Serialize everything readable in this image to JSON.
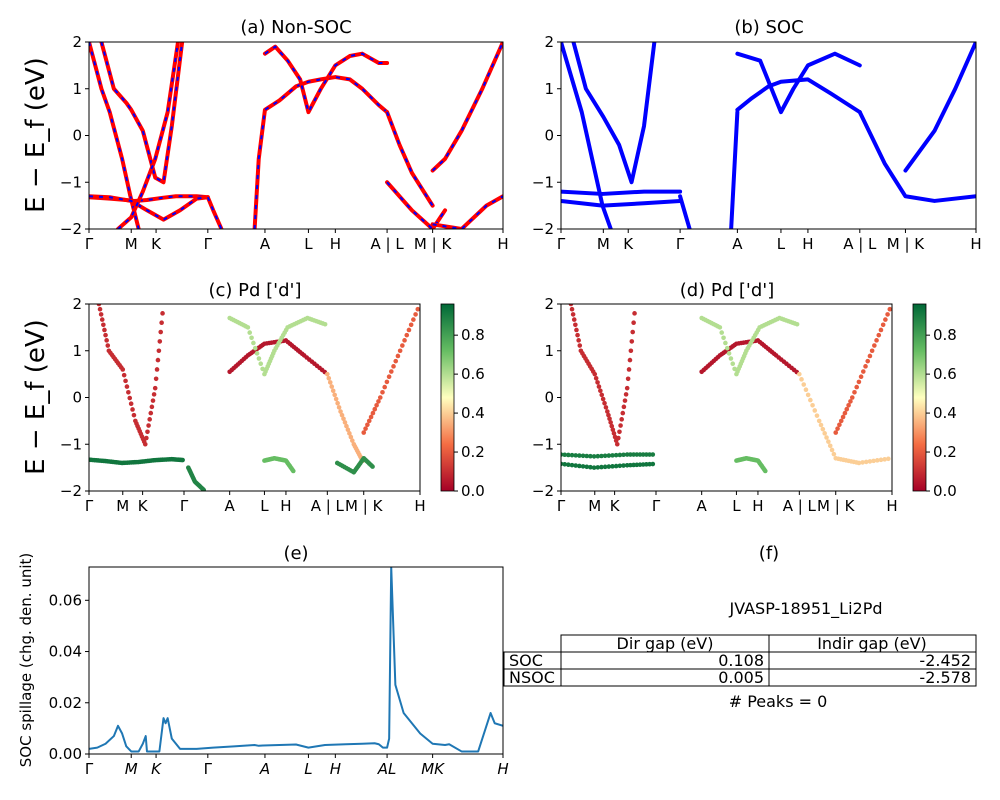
{
  "figure": {
    "background": "#ffffff"
  },
  "chart_data": [
    {
      "id": "a",
      "type": "line",
      "title": "(a) Non-SOC",
      "ylabel": "E − E_f (eV)",
      "ylim": [
        -2,
        2
      ],
      "yticks": [
        "−2",
        "−1",
        "0",
        "1",
        "2"
      ],
      "xticks": [
        "Γ",
        "M",
        "K",
        "Γ",
        "A",
        "L",
        "H",
        "A | L",
        "M | K",
        "H"
      ],
      "xtick_pos": [
        0,
        0.102,
        0.162,
        0.287,
        0.425,
        0.53,
        0.595,
        0.72,
        0.83,
        1.0
      ],
      "style": {
        "color": "#ff0000",
        "dash_color": "#0000ff"
      },
      "series": [
        {
          "x": [
            0.0,
            0.03,
            0.05,
            0.08,
            0.1,
            0.12
          ],
          "y": [
            2.0,
            1.0,
            0.5,
            -0.5,
            -1.3,
            -2.0
          ]
        },
        {
          "x": [
            0.03,
            0.06,
            0.09,
            0.102,
            0.13,
            0.16,
            0.18,
            0.2,
            0.225
          ],
          "y": [
            2.0,
            1.0,
            0.7,
            0.55,
            0.1,
            -0.9,
            -1.0,
            0.2,
            2.0
          ]
        },
        {
          "x": [
            0.0,
            0.05,
            0.09,
            0.11,
            0.14,
            0.18,
            0.21,
            0.26,
            0.287
          ],
          "y": [
            -1.32,
            -1.35,
            -1.38,
            -1.4,
            -1.38,
            -1.33,
            -1.3,
            -1.3,
            -1.32
          ]
        },
        {
          "x": [
            0.0,
            0.05,
            0.102,
            0.14,
            0.18,
            0.22,
            0.26,
            0.287
          ],
          "y": [
            -1.3,
            -1.32,
            -1.4,
            -1.6,
            -1.8,
            -1.6,
            -1.35,
            -1.32
          ]
        },
        {
          "x": [
            0.07,
            0.102,
            0.13,
            0.16,
            0.19,
            0.215
          ],
          "y": [
            -2.0,
            -1.75,
            -1.2,
            -0.5,
            0.5,
            2.0
          ]
        },
        {
          "x": [
            0.287,
            0.3,
            0.32
          ],
          "y": [
            -1.32,
            -1.6,
            -2.0
          ]
        },
        {
          "x": [
            0.4,
            0.41,
            0.425,
            0.46,
            0.5,
            0.53,
            0.56,
            0.595,
            0.63,
            0.66,
            0.7,
            0.72
          ],
          "y": [
            -2.0,
            -0.5,
            0.55,
            0.75,
            1.05,
            1.15,
            1.2,
            1.25,
            1.2,
            1.0,
            0.65,
            0.5
          ]
        },
        {
          "x": [
            0.425,
            0.45,
            0.48,
            0.51,
            0.53,
            0.56,
            0.595,
            0.63,
            0.66,
            0.7,
            0.72
          ],
          "y": [
            1.75,
            1.9,
            1.6,
            1.2,
            0.5,
            1.0,
            1.5,
            1.7,
            1.75,
            1.55,
            1.55
          ]
        },
        {
          "x": [
            0.72,
            0.75,
            0.78,
            0.83
          ],
          "y": [
            0.5,
            -0.2,
            -0.8,
            -1.5
          ]
        },
        {
          "x": [
            0.72,
            0.78,
            0.83,
            0.86
          ],
          "y": [
            -1.0,
            -1.6,
            -2.0,
            -1.6
          ]
        },
        {
          "x": [
            0.83,
            0.86,
            0.9,
            0.95,
            1.0
          ],
          "y": [
            -0.75,
            -0.5,
            0.1,
            1.0,
            2.0
          ]
        },
        {
          "x": [
            0.83,
            0.9,
            0.96,
            1.0
          ],
          "y": [
            -1.9,
            -2.0,
            -1.5,
            -1.3
          ]
        }
      ]
    },
    {
      "id": "b",
      "type": "line",
      "title": "(b) SOC",
      "ylim": [
        -2,
        2
      ],
      "yticks": [
        "−2",
        "−1",
        "0",
        "1",
        "2"
      ],
      "xticks": [
        "Γ",
        "M",
        "K",
        "Γ",
        "A",
        "L",
        "H",
        "A | L",
        "M | K",
        "H"
      ],
      "xtick_pos": [
        0,
        0.102,
        0.162,
        0.287,
        0.425,
        0.53,
        0.595,
        0.72,
        0.83,
        1.0
      ],
      "style": {
        "color": "#0000ff"
      },
      "series": [
        {
          "x": [
            0.0,
            0.1,
            0.2,
            0.287
          ],
          "y": [
            -1.2,
            -1.25,
            -1.2,
            -1.2
          ]
        },
        {
          "x": [
            0.0,
            0.1,
            0.2,
            0.287
          ],
          "y": [
            -1.4,
            -1.5,
            -1.45,
            -1.4
          ]
        },
        {
          "x": [
            0.03,
            0.06,
            0.102,
            0.14,
            0.17,
            0.2,
            0.225
          ],
          "y": [
            2.0,
            1.0,
            0.4,
            -0.2,
            -1.0,
            0.2,
            2.0
          ]
        },
        {
          "x": [
            0.0,
            0.05,
            0.1,
            0.12
          ],
          "y": [
            2.0,
            0.5,
            -1.5,
            -2.0
          ]
        },
        {
          "x": [
            0.425,
            0.46,
            0.5,
            0.53,
            0.595,
            0.65,
            0.72
          ],
          "y": [
            0.55,
            0.8,
            1.05,
            1.15,
            1.2,
            0.9,
            0.5
          ]
        },
        {
          "x": [
            0.425,
            0.48,
            0.53,
            0.56,
            0.595,
            0.66,
            0.72
          ],
          "y": [
            1.75,
            1.6,
            0.5,
            1.0,
            1.5,
            1.75,
            1.5
          ]
        },
        {
          "x": [
            0.72,
            0.78,
            0.83,
            0.9,
            1.0
          ],
          "y": [
            0.5,
            -0.6,
            -1.3,
            -1.4,
            -1.3
          ]
        },
        {
          "x": [
            0.83,
            0.9,
            0.95,
            1.0
          ],
          "y": [
            -0.75,
            0.1,
            1.0,
            2.0
          ]
        },
        {
          "x": [
            0.287,
            0.31
          ],
          "y": [
            -1.3,
            -2.0
          ]
        },
        {
          "x": [
            0.41,
            0.425
          ],
          "y": [
            -2.0,
            0.5
          ]
        }
      ]
    },
    {
      "id": "c",
      "type": "scatter",
      "title": "(c)  Pd ['d']",
      "ylabel": "E − E_f (eV)",
      "ylim": [
        -2,
        2
      ],
      "yticks": [
        "−2",
        "−1",
        "0",
        "1",
        "2"
      ],
      "xticks": [
        "Γ",
        "M",
        "K",
        "Γ",
        "A",
        "L",
        "H",
        "A | L",
        "M | K",
        "H"
      ],
      "xtick_pos": [
        0,
        0.102,
        0.162,
        0.287,
        0.425,
        0.53,
        0.595,
        0.72,
        0.83,
        1.0
      ],
      "colorbar": {
        "ticks": [
          "0.0",
          "0.2",
          "0.4",
          "0.6",
          "0.8"
        ],
        "min": 0.0,
        "max": 0.96
      },
      "series": [
        {
          "x": [
            0.0,
            0.05,
            0.1,
            0.15,
            0.2,
            0.25,
            0.287
          ],
          "y": [
            -1.33,
            -1.36,
            -1.4,
            -1.38,
            -1.34,
            -1.32,
            -1.34
          ],
          "weight": 0.92
        },
        {
          "x": [
            0.03,
            0.06,
            0.102,
            0.14,
            0.17,
            0.2,
            0.225
          ],
          "y": [
            2.0,
            1.0,
            0.6,
            -0.5,
            -1.0,
            0.2,
            2.0
          ],
          "weight": 0.1
        },
        {
          "x": [
            0.425,
            0.48,
            0.53,
            0.595,
            0.65,
            0.72
          ],
          "y": [
            0.55,
            0.9,
            1.15,
            1.22,
            0.9,
            0.5
          ],
          "weight": 0.05
        },
        {
          "x": [
            0.425,
            0.48,
            0.53,
            0.56,
            0.6,
            0.66,
            0.72
          ],
          "y": [
            1.7,
            1.5,
            0.5,
            1.0,
            1.5,
            1.7,
            1.55
          ],
          "weight": 0.6
        },
        {
          "x": [
            0.72,
            0.76,
            0.8,
            0.83
          ],
          "y": [
            0.5,
            -0.3,
            -1.0,
            -1.4
          ],
          "weight": 0.35
        },
        {
          "x": [
            0.83,
            0.88,
            0.94,
            1.0
          ],
          "y": [
            -0.75,
            0.0,
            1.0,
            2.0
          ],
          "weight": 0.2
        },
        {
          "x": [
            0.53,
            0.56,
            0.595,
            0.62
          ],
          "y": [
            -1.35,
            -1.3,
            -1.35,
            -1.6
          ],
          "weight": 0.72
        },
        {
          "x": [
            0.75,
            0.8,
            0.83,
            0.86
          ],
          "y": [
            -1.4,
            -1.6,
            -1.3,
            -1.5
          ],
          "weight": 0.85
        },
        {
          "x": [
            0.3,
            0.32,
            0.35
          ],
          "y": [
            -1.5,
            -1.8,
            -2.0
          ],
          "weight": 0.88
        }
      ]
    },
    {
      "id": "d",
      "type": "scatter",
      "title": "(d) Pd ['d']",
      "ylim": [
        -2,
        2
      ],
      "yticks": [
        "−2",
        "−1",
        "0",
        "1",
        "2"
      ],
      "xticks": [
        "Γ",
        "M",
        "K",
        "Γ",
        "A",
        "L",
        "H",
        "A | L",
        "M | K",
        "H"
      ],
      "xtick_pos": [
        0,
        0.102,
        0.162,
        0.287,
        0.425,
        0.53,
        0.595,
        0.72,
        0.83,
        1.0
      ],
      "colorbar": {
        "ticks": [
          "0.0",
          "0.2",
          "0.4",
          "0.6",
          "0.8"
        ],
        "min": 0.0,
        "max": 0.96
      },
      "series": [
        {
          "x": [
            0.0,
            0.1,
            0.2,
            0.287
          ],
          "y": [
            -1.22,
            -1.26,
            -1.22,
            -1.22
          ],
          "weight": 0.9
        },
        {
          "x": [
            0.0,
            0.1,
            0.2,
            0.287
          ],
          "y": [
            -1.42,
            -1.5,
            -1.45,
            -1.42
          ],
          "weight": 0.92
        },
        {
          "x": [
            0.03,
            0.06,
            0.102,
            0.14,
            0.17,
            0.2,
            0.225
          ],
          "y": [
            2.0,
            1.0,
            0.5,
            -0.3,
            -1.0,
            0.2,
            2.0
          ],
          "weight": 0.1
        },
        {
          "x": [
            0.425,
            0.48,
            0.53,
            0.595,
            0.65,
            0.72
          ],
          "y": [
            0.55,
            0.9,
            1.15,
            1.22,
            0.9,
            0.5
          ],
          "weight": 0.05
        },
        {
          "x": [
            0.425,
            0.48,
            0.53,
            0.56,
            0.6,
            0.66,
            0.72
          ],
          "y": [
            1.7,
            1.5,
            0.5,
            1.0,
            1.5,
            1.7,
            1.55
          ],
          "weight": 0.6
        },
        {
          "x": [
            0.72,
            0.78,
            0.83,
            0.9,
            1.0
          ],
          "y": [
            0.5,
            -0.5,
            -1.3,
            -1.4,
            -1.3
          ],
          "weight": 0.4
        },
        {
          "x": [
            0.83,
            0.88,
            0.94,
            1.0
          ],
          "y": [
            -0.75,
            0.0,
            1.0,
            2.0
          ],
          "weight": 0.2
        },
        {
          "x": [
            0.53,
            0.56,
            0.595,
            0.62
          ],
          "y": [
            -1.35,
            -1.3,
            -1.35,
            -1.6
          ],
          "weight": 0.72
        }
      ]
    },
    {
      "id": "e",
      "type": "line",
      "title": "(e)",
      "ylabel": "SOC spillage (chg. den. unit)",
      "ylim": [
        0,
        0.073
      ],
      "yticks": [
        "0.00",
        "0.02",
        "0.04",
        "0.06"
      ],
      "ytick_values": [
        0,
        0.02,
        0.04,
        0.06
      ],
      "xticks": [
        "Γ",
        "M",
        "K",
        "Γ",
        "A",
        "L",
        "H",
        "AL",
        "MK",
        "H"
      ],
      "xtick_pos": [
        0,
        0.102,
        0.162,
        0.287,
        0.425,
        0.53,
        0.595,
        0.72,
        0.83,
        1.0
      ],
      "style": {
        "color": "#1f77b4"
      },
      "series": [
        {
          "x": [
            0.0,
            0.02,
            0.04,
            0.06,
            0.07,
            0.08,
            0.09,
            0.102,
            0.12,
            0.13,
            0.137,
            0.14,
            0.16,
            0.17,
            0.18,
            0.185,
            0.19,
            0.2,
            0.22,
            0.26,
            0.3,
            0.35,
            0.4,
            0.41,
            0.42,
            0.48,
            0.5,
            0.53,
            0.57,
            0.62,
            0.66,
            0.69,
            0.7,
            0.71,
            0.72,
            0.725,
            0.73,
            0.74,
            0.76,
            0.8,
            0.83,
            0.86,
            0.87,
            0.9,
            0.94,
            0.97,
            0.98,
            1.0
          ],
          "y": [
            0.002,
            0.0025,
            0.004,
            0.007,
            0.011,
            0.008,
            0.003,
            0.001,
            0.001,
            0.004,
            0.007,
            0.001,
            0.001,
            0.001,
            0.014,
            0.012,
            0.014,
            0.006,
            0.002,
            0.002,
            0.0025,
            0.003,
            0.0035,
            0.0032,
            0.0033,
            0.0036,
            0.0037,
            0.0025,
            0.0035,
            0.0038,
            0.004,
            0.0042,
            0.0038,
            0.0025,
            0.0025,
            0.006,
            0.073,
            0.027,
            0.016,
            0.008,
            0.004,
            0.0035,
            0.0038,
            0.001,
            0.001,
            0.016,
            0.012,
            0.011
          ]
        }
      ]
    }
  ],
  "panel_f": {
    "title": "(f)",
    "subtitle": "JVASP-18951_Li2Pd",
    "table": {
      "columns": [
        "Dir gap (eV)",
        "Indir gap (eV)"
      ],
      "rows": [
        {
          "label": "SOC",
          "values": [
            "0.108",
            "-2.452"
          ]
        },
        {
          "label": "NSOC",
          "values": [
            "0.005",
            "-2.578"
          ]
        }
      ]
    },
    "footer": "# Peaks = 0"
  }
}
